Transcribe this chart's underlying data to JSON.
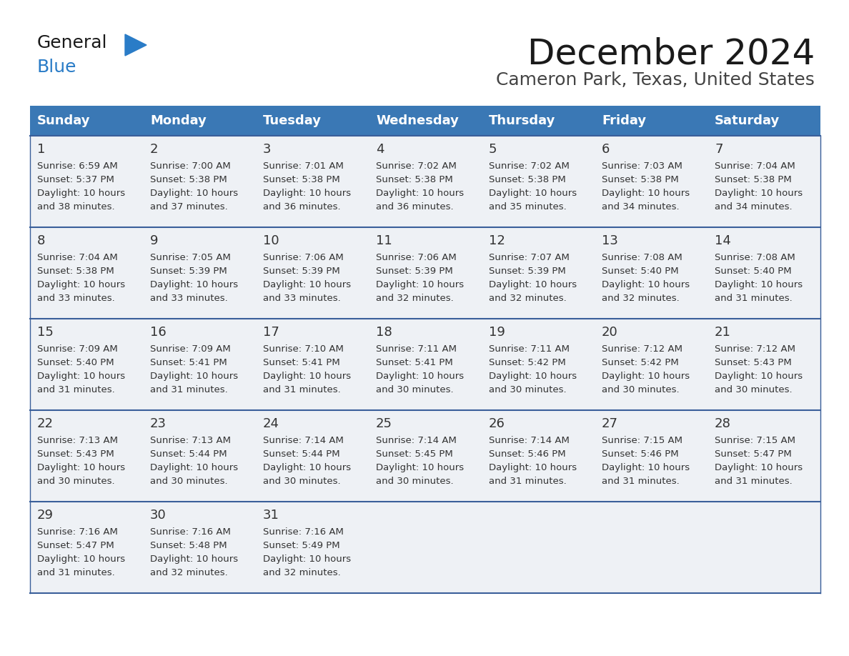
{
  "title": "December 2024",
  "subtitle": "Cameron Park, Texas, United States",
  "header_color": "#3a78b5",
  "header_text_color": "#ffffff",
  "days_of_week": [
    "Sunday",
    "Monday",
    "Tuesday",
    "Wednesday",
    "Thursday",
    "Friday",
    "Saturday"
  ],
  "cell_bg_light": "#eef1f5",
  "cell_bg_white": "#ffffff",
  "row_border_color": "#3a5f9a",
  "text_color": "#333333",
  "calendar_data": [
    [
      {
        "day": "1",
        "sunrise": "6:59 AM",
        "sunset": "5:37 PM",
        "daylight_h": "10 hours",
        "daylight_m": "38 minutes"
      },
      {
        "day": "2",
        "sunrise": "7:00 AM",
        "sunset": "5:38 PM",
        "daylight_h": "10 hours",
        "daylight_m": "37 minutes"
      },
      {
        "day": "3",
        "sunrise": "7:01 AM",
        "sunset": "5:38 PM",
        "daylight_h": "10 hours",
        "daylight_m": "36 minutes"
      },
      {
        "day": "4",
        "sunrise": "7:02 AM",
        "sunset": "5:38 PM",
        "daylight_h": "10 hours",
        "daylight_m": "36 minutes"
      },
      {
        "day": "5",
        "sunrise": "7:02 AM",
        "sunset": "5:38 PM",
        "daylight_h": "10 hours",
        "daylight_m": "35 minutes"
      },
      {
        "day": "6",
        "sunrise": "7:03 AM",
        "sunset": "5:38 PM",
        "daylight_h": "10 hours",
        "daylight_m": "34 minutes"
      },
      {
        "day": "7",
        "sunrise": "7:04 AM",
        "sunset": "5:38 PM",
        "daylight_h": "10 hours",
        "daylight_m": "34 minutes"
      }
    ],
    [
      {
        "day": "8",
        "sunrise": "7:04 AM",
        "sunset": "5:38 PM",
        "daylight_h": "10 hours",
        "daylight_m": "33 minutes"
      },
      {
        "day": "9",
        "sunrise": "7:05 AM",
        "sunset": "5:39 PM",
        "daylight_h": "10 hours",
        "daylight_m": "33 minutes"
      },
      {
        "day": "10",
        "sunrise": "7:06 AM",
        "sunset": "5:39 PM",
        "daylight_h": "10 hours",
        "daylight_m": "33 minutes"
      },
      {
        "day": "11",
        "sunrise": "7:06 AM",
        "sunset": "5:39 PM",
        "daylight_h": "10 hours",
        "daylight_m": "32 minutes"
      },
      {
        "day": "12",
        "sunrise": "7:07 AM",
        "sunset": "5:39 PM",
        "daylight_h": "10 hours",
        "daylight_m": "32 minutes"
      },
      {
        "day": "13",
        "sunrise": "7:08 AM",
        "sunset": "5:40 PM",
        "daylight_h": "10 hours",
        "daylight_m": "32 minutes"
      },
      {
        "day": "14",
        "sunrise": "7:08 AM",
        "sunset": "5:40 PM",
        "daylight_h": "10 hours",
        "daylight_m": "31 minutes"
      }
    ],
    [
      {
        "day": "15",
        "sunrise": "7:09 AM",
        "sunset": "5:40 PM",
        "daylight_h": "10 hours",
        "daylight_m": "31 minutes"
      },
      {
        "day": "16",
        "sunrise": "7:09 AM",
        "sunset": "5:41 PM",
        "daylight_h": "10 hours",
        "daylight_m": "31 minutes"
      },
      {
        "day": "17",
        "sunrise": "7:10 AM",
        "sunset": "5:41 PM",
        "daylight_h": "10 hours",
        "daylight_m": "31 minutes"
      },
      {
        "day": "18",
        "sunrise": "7:11 AM",
        "sunset": "5:41 PM",
        "daylight_h": "10 hours",
        "daylight_m": "30 minutes"
      },
      {
        "day": "19",
        "sunrise": "7:11 AM",
        "sunset": "5:42 PM",
        "daylight_h": "10 hours",
        "daylight_m": "30 minutes"
      },
      {
        "day": "20",
        "sunrise": "7:12 AM",
        "sunset": "5:42 PM",
        "daylight_h": "10 hours",
        "daylight_m": "30 minutes"
      },
      {
        "day": "21",
        "sunrise": "7:12 AM",
        "sunset": "5:43 PM",
        "daylight_h": "10 hours",
        "daylight_m": "30 minutes"
      }
    ],
    [
      {
        "day": "22",
        "sunrise": "7:13 AM",
        "sunset": "5:43 PM",
        "daylight_h": "10 hours",
        "daylight_m": "30 minutes"
      },
      {
        "day": "23",
        "sunrise": "7:13 AM",
        "sunset": "5:44 PM",
        "daylight_h": "10 hours",
        "daylight_m": "30 minutes"
      },
      {
        "day": "24",
        "sunrise": "7:14 AM",
        "sunset": "5:44 PM",
        "daylight_h": "10 hours",
        "daylight_m": "30 minutes"
      },
      {
        "day": "25",
        "sunrise": "7:14 AM",
        "sunset": "5:45 PM",
        "daylight_h": "10 hours",
        "daylight_m": "30 minutes"
      },
      {
        "day": "26",
        "sunrise": "7:14 AM",
        "sunset": "5:46 PM",
        "daylight_h": "10 hours",
        "daylight_m": "31 minutes"
      },
      {
        "day": "27",
        "sunrise": "7:15 AM",
        "sunset": "5:46 PM",
        "daylight_h": "10 hours",
        "daylight_m": "31 minutes"
      },
      {
        "day": "28",
        "sunrise": "7:15 AM",
        "sunset": "5:47 PM",
        "daylight_h": "10 hours",
        "daylight_m": "31 minutes"
      }
    ],
    [
      {
        "day": "29",
        "sunrise": "7:16 AM",
        "sunset": "5:47 PM",
        "daylight_h": "10 hours",
        "daylight_m": "31 minutes"
      },
      {
        "day": "30",
        "sunrise": "7:16 AM",
        "sunset": "5:48 PM",
        "daylight_h": "10 hours",
        "daylight_m": "32 minutes"
      },
      {
        "day": "31",
        "sunrise": "7:16 AM",
        "sunset": "5:49 PM",
        "daylight_h": "10 hours",
        "daylight_m": "32 minutes"
      },
      null,
      null,
      null,
      null
    ]
  ],
  "logo_text1": "General",
  "logo_text2": "Blue",
  "logo_color1": "#1a1a1a",
  "logo_color2": "#2a7cc7",
  "logo_triangle_color": "#2a7cc7",
  "title_fontsize": 36,
  "subtitle_fontsize": 18,
  "header_fontsize": 13,
  "day_num_fontsize": 13,
  "cell_text_fontsize": 9.5
}
